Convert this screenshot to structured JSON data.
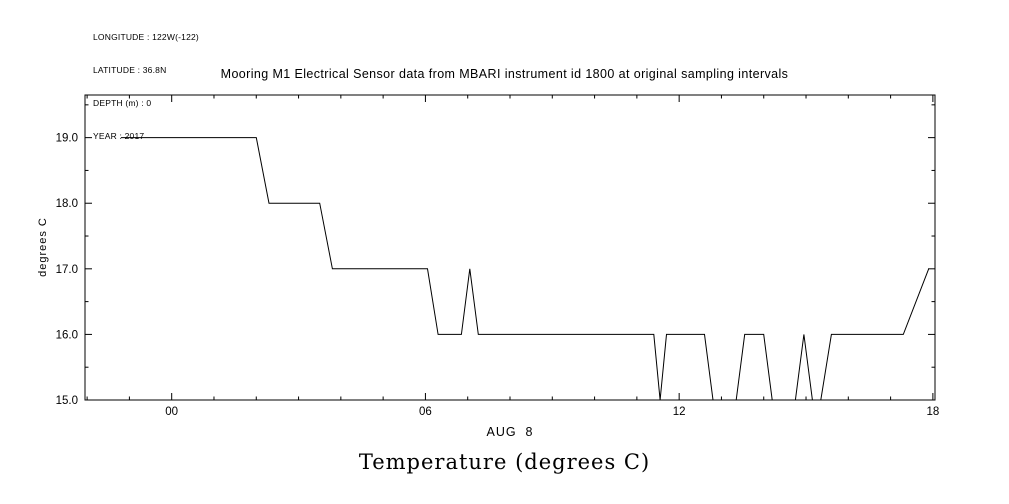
{
  "header": {
    "line1": "LONGITUDE : 122W(-122)",
    "line2": "LATITUDE : 36.8N",
    "line3": "DEPTH (m) : 0",
    "line4": "YEAR : 2017"
  },
  "title": "Mooring M1 Electrical Sensor data from MBARI instrument id 1800 at original sampling intervals",
  "caption": "Temperature (degrees C)",
  "chart_data": {
    "type": "line",
    "title": "Mooring M1 Electrical Sensor data from MBARI instrument id 1800 at original sampling intervals",
    "xlabel": "AUG  8",
    "ylabel": "degrees C",
    "xlim": [
      -2.05,
      18.05
    ],
    "ylim": [
      15.0,
      19.65
    ],
    "x_major_ticks": [
      0,
      6,
      12,
      18
    ],
    "x_tick_labels": [
      "00",
      "06",
      "12",
      "18"
    ],
    "x_minor_step": 1,
    "y_major_ticks": [
      15,
      16,
      17,
      18,
      19
    ],
    "y_tick_labels": [
      "15.0",
      "16.0",
      "17.0",
      "18.0",
      "19.0"
    ],
    "y_minor_step": 0.5,
    "grid": false,
    "legend": "none",
    "line_color": "#000000",
    "background": "#ffffff",
    "series": [
      {
        "name": "Temperature",
        "units": "degrees C",
        "points": [
          [
            -1.2,
            19.0
          ],
          [
            2.0,
            19.0
          ],
          [
            2.3,
            18.0
          ],
          [
            3.5,
            18.0
          ],
          [
            3.8,
            17.0
          ],
          [
            6.05,
            17.0
          ],
          [
            6.3,
            16.0
          ],
          [
            6.85,
            16.0
          ],
          [
            7.05,
            17.0
          ],
          [
            7.25,
            16.0
          ],
          [
            11.4,
            16.0
          ],
          [
            11.55,
            15.0
          ],
          [
            11.7,
            16.0
          ],
          [
            12.6,
            16.0
          ],
          [
            12.8,
            15.0
          ],
          [
            13.35,
            15.0
          ],
          [
            13.55,
            16.0
          ],
          [
            14.0,
            16.0
          ],
          [
            14.2,
            15.0
          ],
          [
            14.75,
            15.0
          ],
          [
            14.95,
            16.0
          ],
          [
            15.15,
            15.0
          ],
          [
            15.35,
            15.0
          ],
          [
            15.6,
            16.0
          ],
          [
            17.3,
            16.0
          ],
          [
            17.9,
            17.0
          ]
        ]
      }
    ]
  }
}
